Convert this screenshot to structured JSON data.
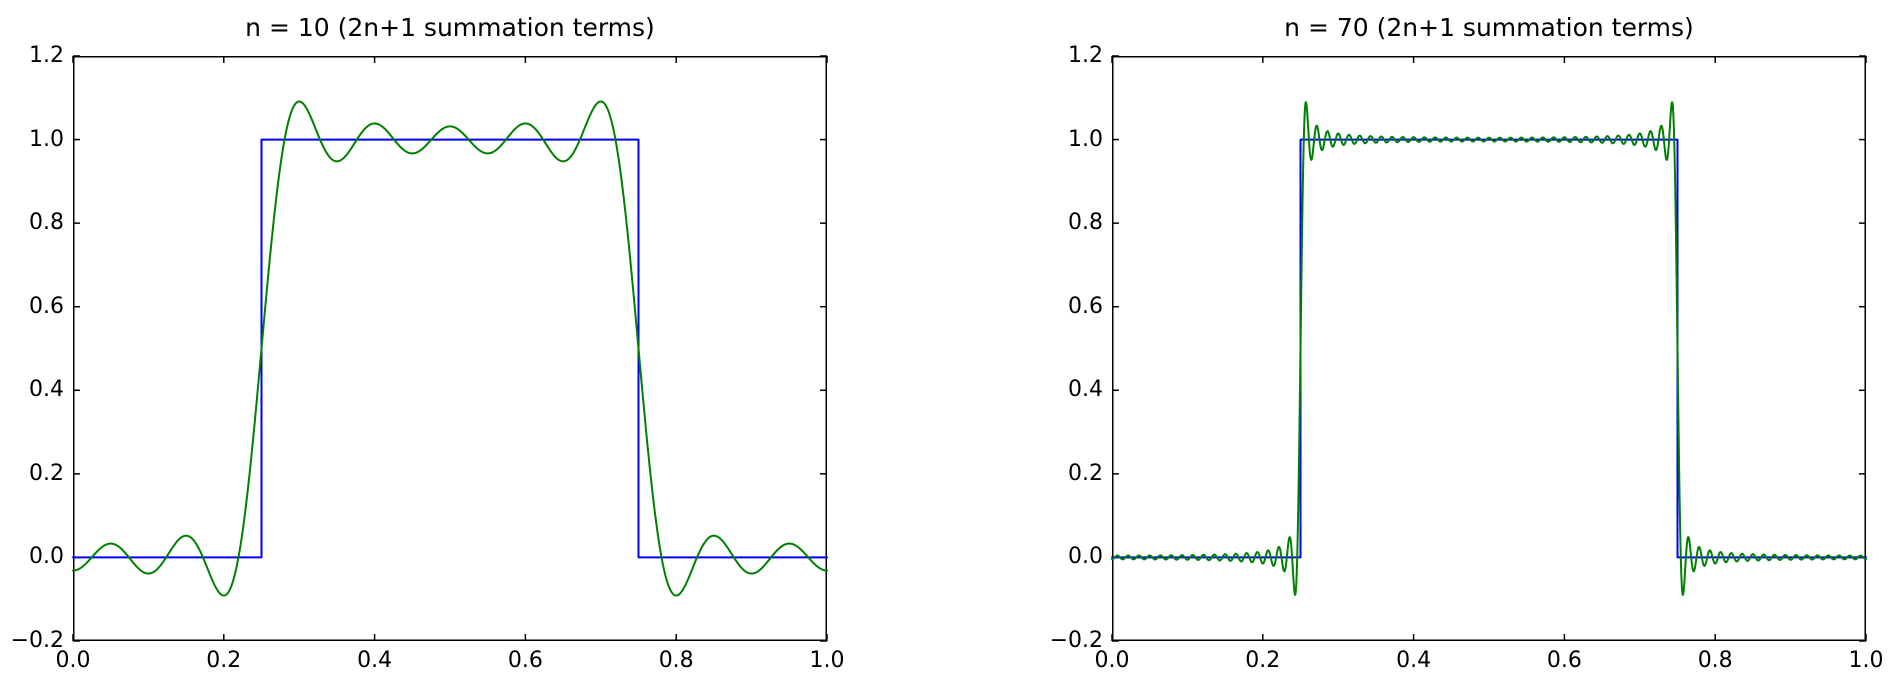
{
  "figure": {
    "background": "#ffffff",
    "spine_color": "#000000",
    "text_color": "#000000"
  },
  "chart_data": [
    {
      "type": "line",
      "title": "n = 10 (2n+1 summation terms)",
      "xlabel": "",
      "ylabel": "",
      "xlim": [
        0,
        1
      ],
      "ylim": [
        -0.2,
        1.2
      ],
      "grid": false,
      "legend": null,
      "xticks": {
        "values": [
          0,
          0.2,
          0.4,
          0.6,
          0.8,
          1.0
        ],
        "labels": [
          "0.0",
          "0.2",
          "0.4",
          "0.6",
          "0.8",
          "1.0"
        ]
      },
      "yticks": {
        "values": [
          -0.2,
          0,
          0.2,
          0.4,
          0.6,
          0.8,
          1.0,
          1.2
        ],
        "labels": [
          "−0.2",
          "0.0",
          "0.2",
          "0.4",
          "0.6",
          "0.8",
          "1.0",
          "1.2"
        ]
      },
      "series": [
        {
          "name": "square-wave-target",
          "kind": "steps",
          "color": "#0000ff",
          "points": [
            [
              0,
              0
            ],
            [
              0.25,
              0
            ],
            [
              0.25,
              1
            ],
            [
              0.75,
              1
            ],
            [
              0.75,
              0
            ],
            [
              1,
              0
            ]
          ]
        },
        {
          "name": "fourier-partial-sum",
          "kind": "fourier-square",
          "color": "#008000",
          "n": 10,
          "terms": 21,
          "model": "y(x) = 0.5 + sum over odd k<=n of (2/(pi*k))*sin(pi*k/2)*cos(2*pi*k*(x-0.5))"
        }
      ]
    },
    {
      "type": "line",
      "title": "n = 70 (2n+1 summation terms)",
      "xlabel": "",
      "ylabel": "",
      "xlim": [
        0,
        1
      ],
      "ylim": [
        -0.2,
        1.2
      ],
      "grid": false,
      "legend": null,
      "xticks": {
        "values": [
          0,
          0.2,
          0.4,
          0.6,
          0.8,
          1.0
        ],
        "labels": [
          "0.0",
          "0.2",
          "0.4",
          "0.6",
          "0.8",
          "1.0"
        ]
      },
      "yticks": {
        "values": [
          -0.2,
          0,
          0.2,
          0.4,
          0.6,
          0.8,
          1.0,
          1.2
        ],
        "labels": [
          "−0.2",
          "0.0",
          "0.2",
          "0.4",
          "0.6",
          "0.8",
          "1.0",
          "1.2"
        ]
      },
      "series": [
        {
          "name": "square-wave-target",
          "kind": "steps",
          "color": "#0000ff",
          "points": [
            [
              0,
              0
            ],
            [
              0.25,
              0
            ],
            [
              0.25,
              1
            ],
            [
              0.75,
              1
            ],
            [
              0.75,
              0
            ],
            [
              1,
              0
            ]
          ]
        },
        {
          "name": "fourier-partial-sum",
          "kind": "fourier-square",
          "color": "#008000",
          "n": 70,
          "terms": 141,
          "model": "y(x) = 0.5 + sum over odd k<=n of (2/(pi*k))*sin(pi*k/2)*cos(2*pi*k*(x-0.5))"
        }
      ]
    }
  ]
}
